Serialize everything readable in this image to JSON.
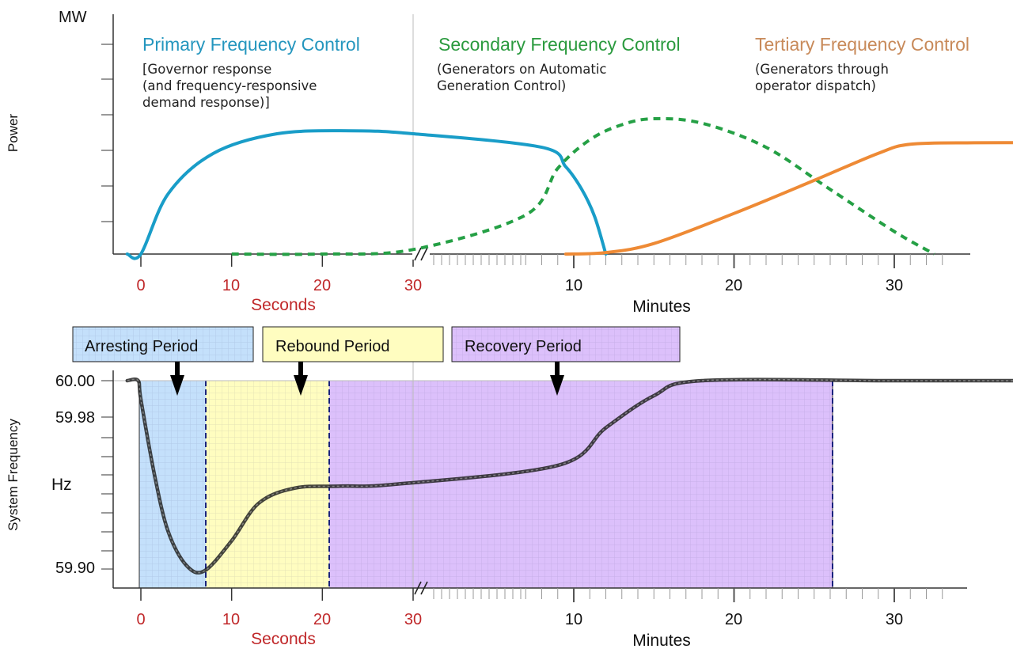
{
  "chart_data": [
    {
      "type": "line",
      "title": "",
      "ylabel": "Power",
      "yunit": "MW",
      "xaxis": {
        "seconds": {
          "label": "Seconds",
          "ticks": [
            "0",
            "10",
            "20",
            "30"
          ],
          "range": [
            0,
            30
          ]
        },
        "minutes": {
          "label": "Minutes",
          "ticks": [
            "10",
            "20",
            "30"
          ]
        }
      },
      "series": [
        {
          "name": "Primary Frequency Control",
          "description_lines": [
            "[Governor response",
            "(and frequency-responsive",
            "demand response)]"
          ],
          "style": "solid",
          "color": "#199dc8",
          "points": [
            [
              -1.5,
              0
            ],
            [
              0,
              0
            ],
            [
              3,
              40
            ],
            [
              8,
              67
            ],
            [
              15,
              80
            ],
            [
              23,
              82
            ],
            [
              30,
              80
            ],
            [
              33,
              71
            ],
            [
              34.5,
              58
            ],
            [
              35.5,
              43
            ],
            [
              36.3,
              25
            ],
            [
              37.0,
              0
            ]
          ]
        },
        {
          "name": "Secondary Frequency Control",
          "description_lines": [
            "(Generators on Automatic",
            "Generation Control)"
          ],
          "style": "dashed",
          "color": "#25a045",
          "points": [
            [
              10,
              0
            ],
            [
              20,
              0
            ],
            [
              30,
              3
            ],
            [
              32,
              26
            ],
            [
              34,
              57
            ],
            [
              36,
              76
            ],
            [
              38,
              86
            ],
            [
              40,
              90
            ],
            [
              43,
              87
            ],
            [
              47,
              71
            ],
            [
              51,
              43
            ],
            [
              55,
              15
            ],
            [
              57.5,
              0
            ]
          ]
        },
        {
          "name": "Tertiary Frequency Control",
          "description_lines": [
            "(Generators through",
            "operator dispatch)"
          ],
          "style": "solid",
          "color": "#ee8a35",
          "points": [
            [
              34.5,
              0
            ],
            [
              37,
              1
            ],
            [
              40,
              7
            ],
            [
              45,
              27
            ],
            [
              50,
              49
            ],
            [
              54,
              67
            ],
            [
              56,
              73
            ],
            [
              60,
              74
            ],
            [
              65,
              74
            ]
          ]
        }
      ]
    },
    {
      "type": "line",
      "title": "",
      "ylabel": "System Frequency",
      "yunit": "Hz",
      "yticks": [
        "60.00",
        "59.98",
        "59.90"
      ],
      "ylim": [
        59.89,
        60.0
      ],
      "xaxis": {
        "seconds": {
          "label": "Seconds",
          "ticks": [
            "0",
            "10",
            "20",
            "30"
          ],
          "range": [
            0,
            30
          ]
        },
        "minutes": {
          "label": "Minutes",
          "ticks": [
            "10",
            "20",
            "30"
          ]
        }
      },
      "periods": [
        {
          "name": "Arresting Period",
          "fill": "#c4e0fb"
        },
        {
          "name": "Rebound Period",
          "fill": "#fffdc0"
        },
        {
          "name": "Recovery Period",
          "fill": "#dcc0fb"
        }
      ],
      "series": [
        {
          "name": "System Frequency",
          "points": [
            [
              -1.5,
              60.0
            ],
            [
              -0.3,
              60.0
            ],
            [
              0,
              59.99
            ],
            [
              1.5,
              59.95
            ],
            [
              3,
              59.92
            ],
            [
              5,
              59.902
            ],
            [
              7,
              59.899
            ],
            [
              10,
              59.915
            ],
            [
              13,
              59.935
            ],
            [
              17,
              59.943
            ],
            [
              22,
              59.944
            ],
            [
              28,
              59.945
            ],
            [
              34,
              59.955
            ],
            [
              37,
              59.975
            ],
            [
              40,
              59.992
            ],
            [
              43,
              60.0
            ],
            [
              55,
              60.0
            ],
            [
              64,
              60.0
            ]
          ]
        }
      ]
    }
  ]
}
